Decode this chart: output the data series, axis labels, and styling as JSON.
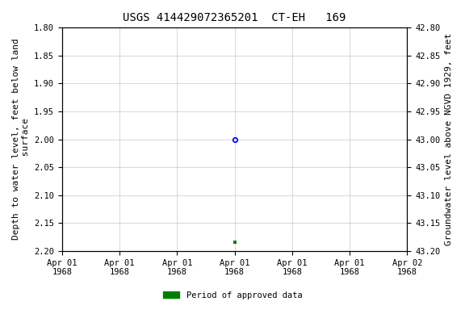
{
  "title": "USGS 414429072365201  CT-EH   169",
  "ylabel_left": "Depth to water level, feet below land\n surface",
  "ylabel_right": "Groundwater level above NGVD 1929, feet",
  "ylim_left": [
    1.8,
    2.2
  ],
  "ylim_right": [
    43.2,
    42.8
  ],
  "yticks_left": [
    1.8,
    1.85,
    1.9,
    1.95,
    2.0,
    2.05,
    2.1,
    2.15,
    2.2
  ],
  "yticks_right": [
    43.2,
    43.15,
    43.1,
    43.05,
    43.0,
    42.95,
    42.9,
    42.85,
    42.8
  ],
  "yticks_right_labels": [
    "43.20",
    "43.15",
    "43.10",
    "43.05",
    "43.00",
    "42.95",
    "42.90",
    "42.85",
    "42.80"
  ],
  "xlim": [
    0,
    6
  ],
  "xtick_positions": [
    0,
    1,
    2,
    3,
    4,
    5,
    6
  ],
  "xtick_labels": [
    "Apr 01\n1968",
    "Apr 01\n1968",
    "Apr 01\n1968",
    "Apr 01\n1968",
    "Apr 01\n1968",
    "Apr 01\n1968",
    "Apr 02\n1968"
  ],
  "data_point_blue": {
    "x": 3.0,
    "value": 2.0
  },
  "data_point_green": {
    "x": 3.0,
    "value": 2.185
  },
  "legend_label": "Period of approved data",
  "legend_color": "#008000",
  "grid_color": "#c8c8c8",
  "background_color": "#ffffff",
  "title_fontsize": 10,
  "axis_label_fontsize": 8,
  "tick_fontsize": 7.5
}
